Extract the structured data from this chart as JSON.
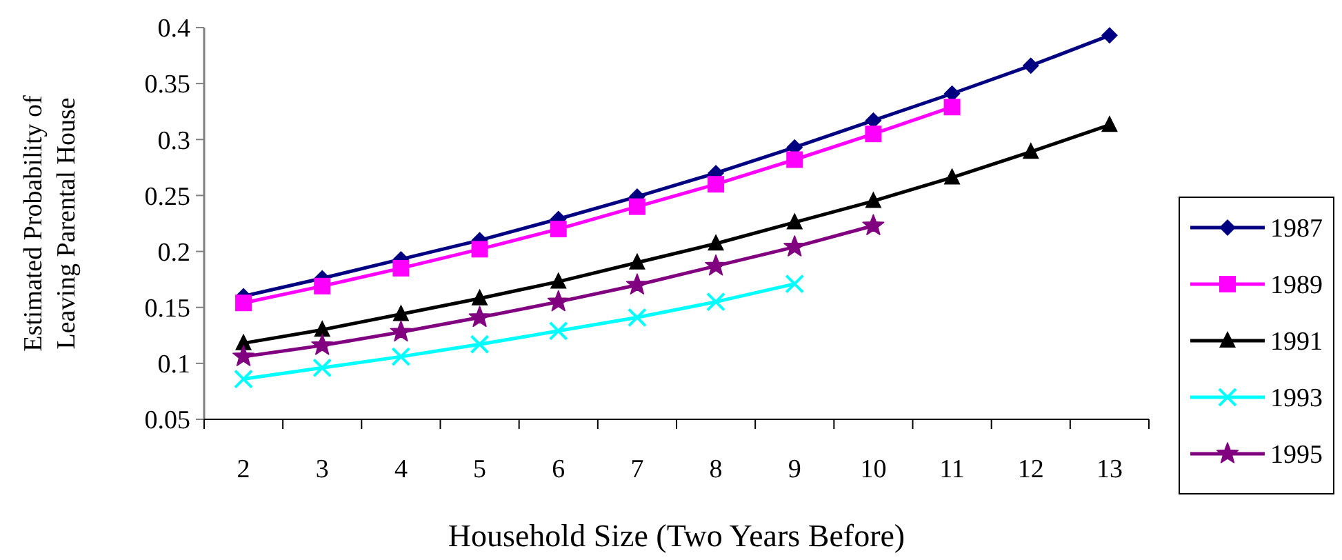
{
  "chart_data": {
    "type": "line",
    "xlabel": "Household Size (Two Years Before)",
    "ylabel": "Estimated Probability of\nLeaving Parental House",
    "categories": [
      "2",
      "3",
      "4",
      "5",
      "6",
      "7",
      "8",
      "9",
      "10",
      "11",
      "12",
      "13"
    ],
    "ylim": [
      0.05,
      0.4
    ],
    "yticks": [
      0.05,
      0.1,
      0.15,
      0.2,
      0.25,
      0.3,
      0.35,
      0.4
    ],
    "grid": false,
    "legend": "right",
    "line_style": "solid",
    "series": [
      {
        "name": "1987",
        "color": "#000080",
        "marker": "diamond",
        "values": [
          0.16,
          0.176,
          0.193,
          0.21,
          0.229,
          0.249,
          0.27,
          0.293,
          0.317,
          0.341,
          0.366,
          0.393
        ]
      },
      {
        "name": "1989",
        "color": "#ff00ff",
        "marker": "square",
        "values": [
          0.154,
          0.169,
          0.185,
          0.202,
          0.22,
          0.24,
          0.26,
          0.282,
          0.305,
          0.329,
          null,
          null
        ]
      },
      {
        "name": "1991",
        "color": "#000000",
        "marker": "triangle",
        "values": [
          0.118,
          0.13,
          0.144,
          0.158,
          0.173,
          0.19,
          0.207,
          0.226,
          0.245,
          0.266,
          0.289,
          0.313
        ]
      },
      {
        "name": "1993",
        "color": "#00ffff",
        "marker": "cross",
        "values": [
          0.086,
          0.096,
          0.106,
          0.117,
          0.129,
          0.141,
          0.155,
          0.171,
          null,
          null,
          null,
          null
        ]
      },
      {
        "name": "1995",
        "color": "#800080",
        "marker": "star",
        "values": [
          0.106,
          0.116,
          0.128,
          0.141,
          0.155,
          0.17,
          0.187,
          0.204,
          0.223,
          null,
          null,
          null
        ]
      }
    ]
  }
}
